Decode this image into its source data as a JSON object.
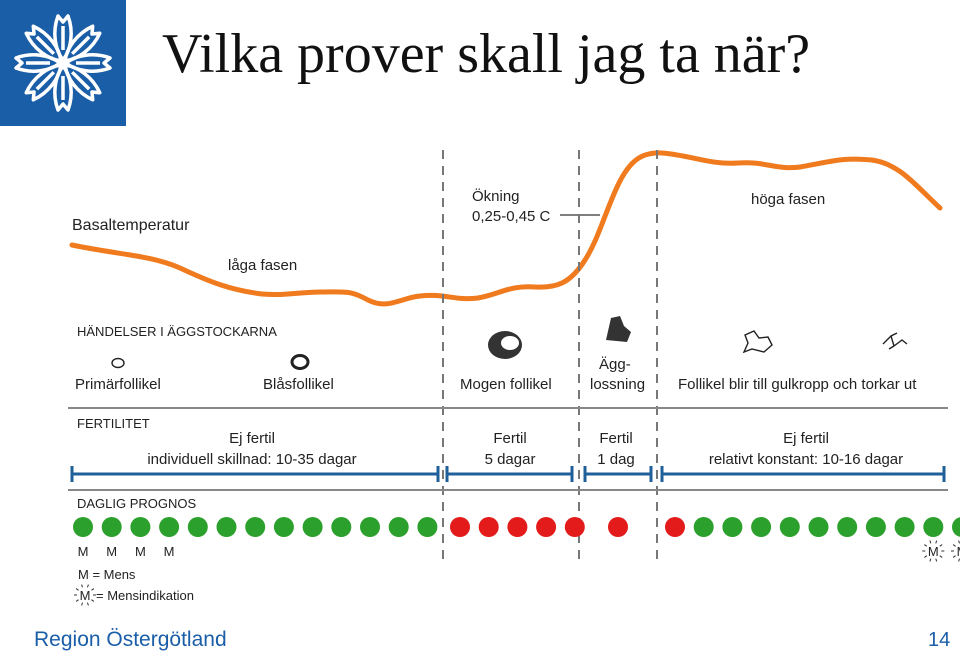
{
  "header": {
    "title": "Vilka prover skall jag ta när?"
  },
  "temperature": {
    "label": "Basaltemperatur",
    "low_phase": "låga fasen",
    "rise_label_1": "Ökning",
    "rise_label_2": "0,25-0,45 C",
    "high_phase": "höga fasen",
    "curve_color": "#f07a1e"
  },
  "events": {
    "heading": "HÄNDELSER I ÄGGSTOCKARNA",
    "primary": "Primärfollikel",
    "vesicular": "Blåsfollikel",
    "mature": "Mogen follikel",
    "ovulation_1": "Ägg-",
    "ovulation_2": "lossning",
    "corpus": "Follikel blir till gulkropp och torkar ut"
  },
  "fertility": {
    "heading": "FERTILITET",
    "phase1_title": "Ej fertil",
    "phase1_detail": "individuell skillnad: 10-35 dagar",
    "phase2_title": "Fertil",
    "phase2_detail": "5 dagar",
    "phase3_title": "Fertil",
    "phase3_detail": "1 dag",
    "phase4_title": "Ej fertil",
    "phase4_detail": "relativt konstant: 10-16 dagar",
    "bar_color": "#1f5f9a"
  },
  "prognosis": {
    "heading": "DAGLIG PROGNOS",
    "green_color": "#2ca02c",
    "red_color": "#e31b1b",
    "group1": [
      "green",
      "green",
      "green",
      "green",
      "green",
      "green",
      "green",
      "green",
      "green",
      "green",
      "green",
      "green",
      "green"
    ],
    "group2": [
      "red",
      "red",
      "red",
      "red",
      "red"
    ],
    "group3": [
      "red"
    ],
    "group4": [
      "red",
      "green",
      "green",
      "green",
      "green",
      "green",
      "green",
      "green",
      "green",
      "green",
      "green"
    ],
    "mens_mark": "M",
    "mens_count": 4,
    "indication_count": 2,
    "legend_mens": "M = Mens",
    "legend_indication": "= Mensindikation"
  },
  "footer": {
    "organization": "Region Östergötland",
    "page_number": "14"
  }
}
